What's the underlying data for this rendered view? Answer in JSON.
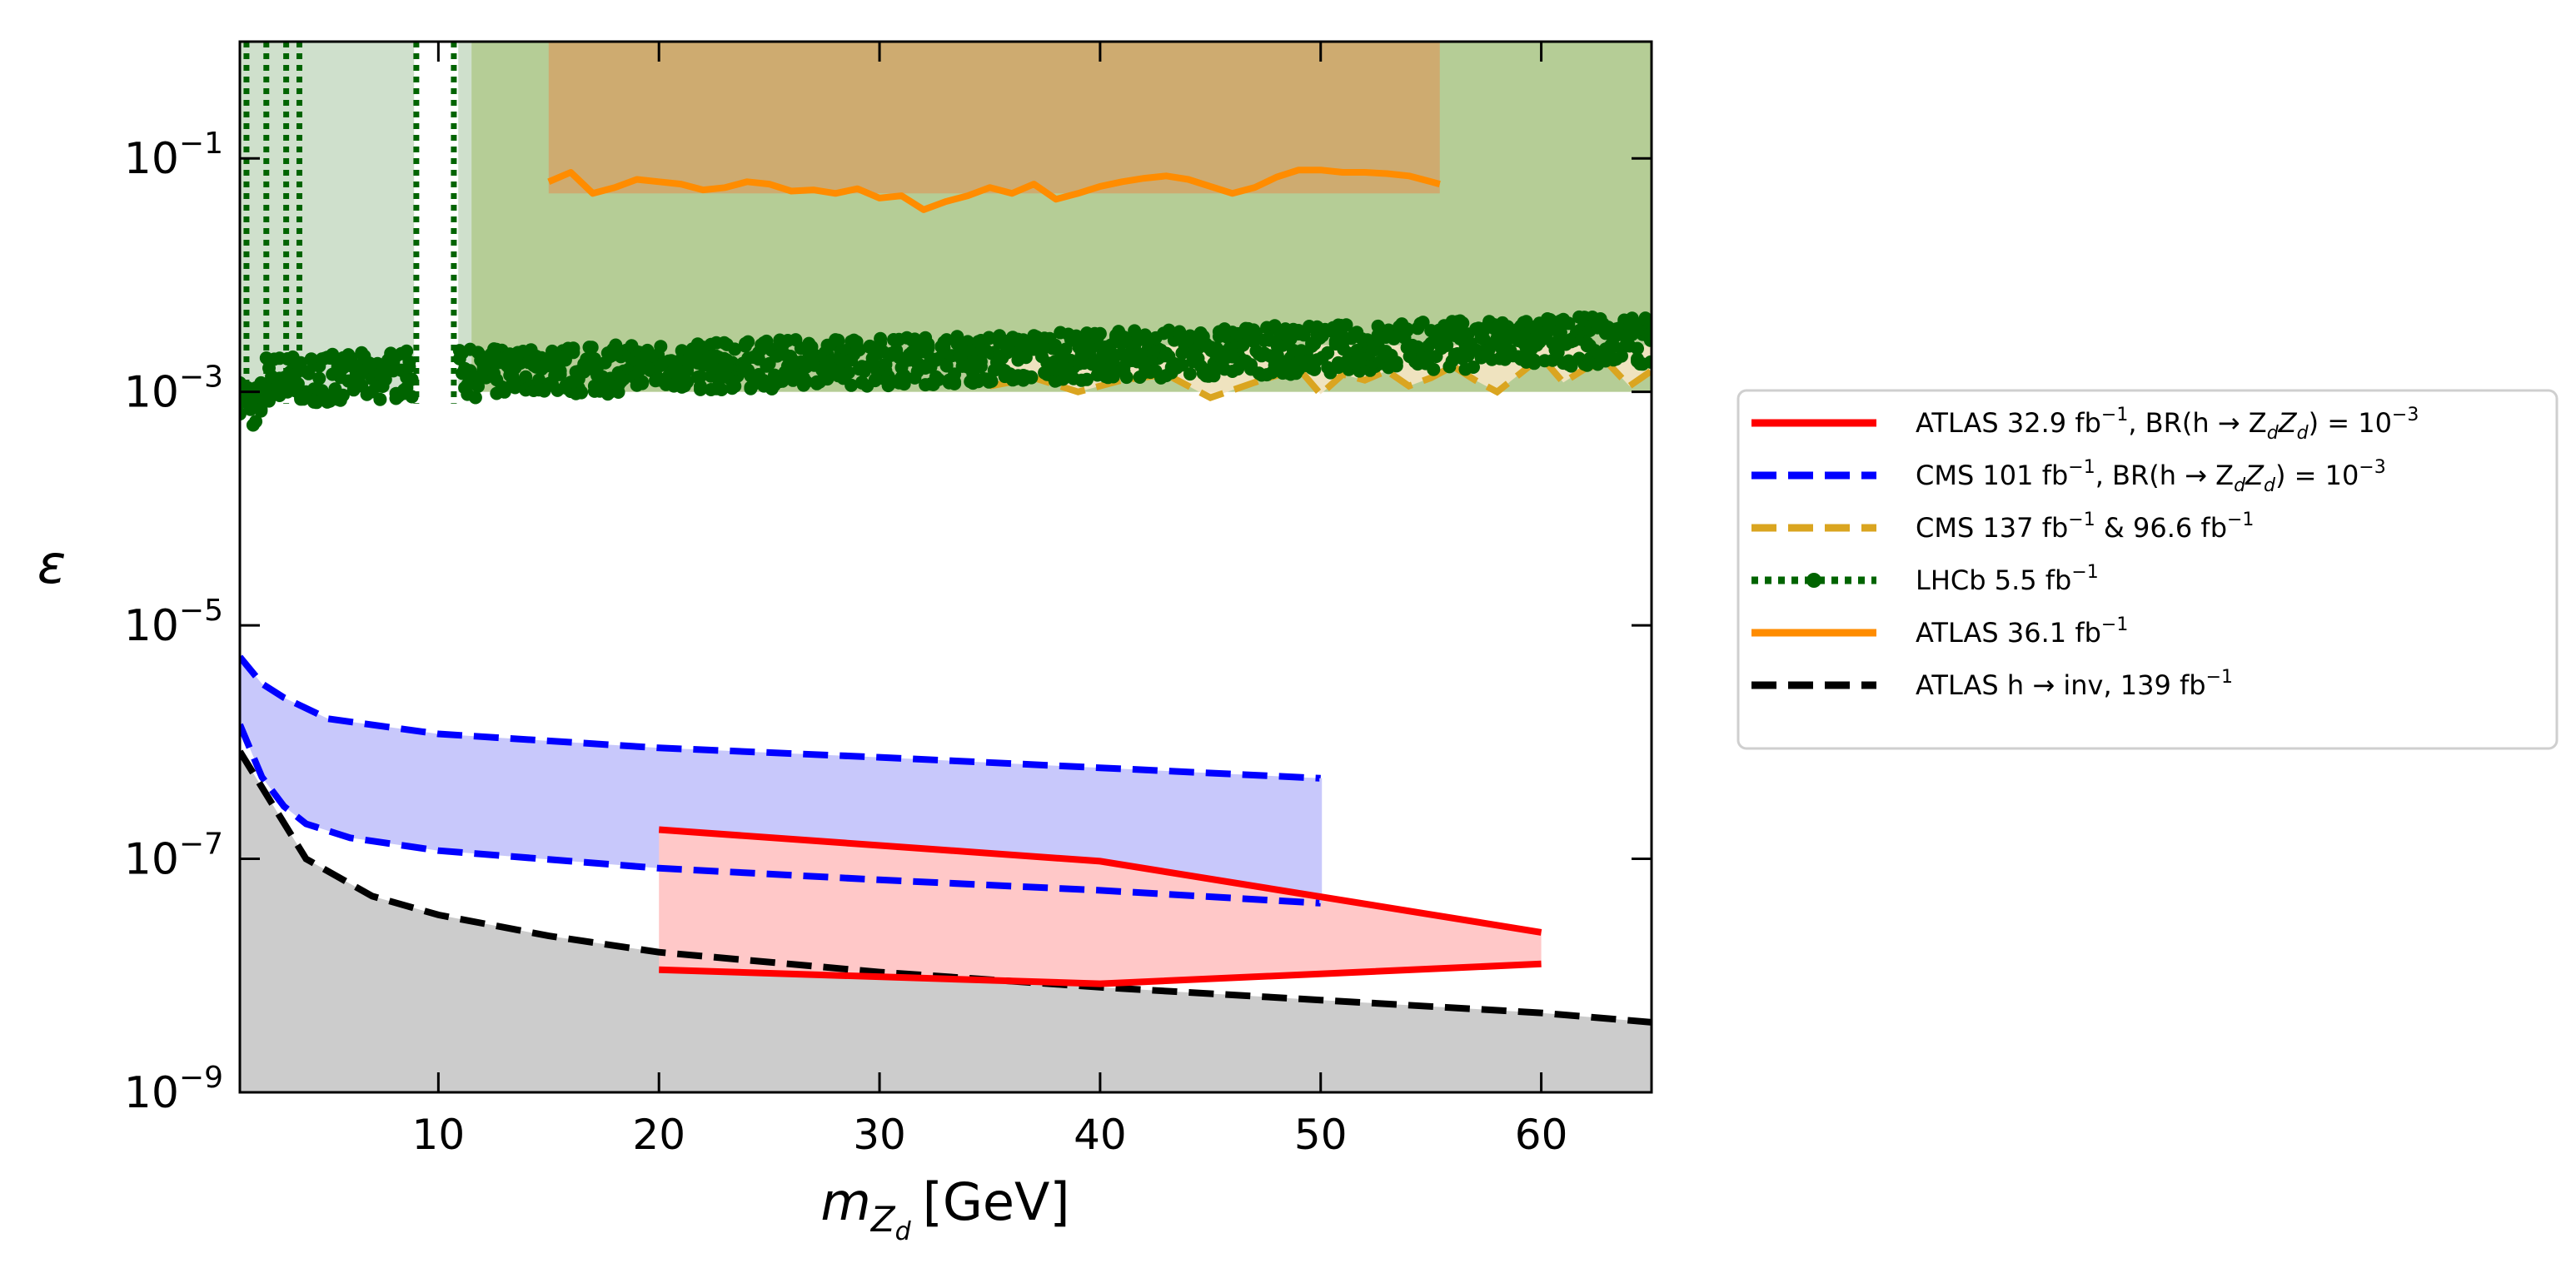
{
  "chart_data": {
    "type": "line",
    "xlabel": "m",
    "xlabel_sub": "Z",
    "xlabel_subsub": "d",
    "xlabel_unit": "[GeV]",
    "ylabel": "ε",
    "xlim": [
      1,
      65
    ],
    "ylim_log10": [
      -9,
      0
    ],
    "x_ticks": [
      10,
      20,
      30,
      40,
      50,
      60
    ],
    "y_ticks": [
      {
        "base": "10",
        "exp": "−1",
        "log10": -1
      },
      {
        "base": "10",
        "exp": "−3",
        "log10": -3
      },
      {
        "base": "10",
        "exp": "−5",
        "log10": -5
      },
      {
        "base": "10",
        "exp": "−7",
        "log10": -7
      },
      {
        "base": "10",
        "exp": "−9",
        "log10": -9
      }
    ],
    "legend_position": "right, outside plot",
    "legend": [
      {
        "id": "atlas329",
        "label": "ATLAS 32.9 fb",
        "sup": "−1",
        "tail": ", BR(h → Z",
        "tail2": "Z",
        "tail3": ") = 10",
        "tail_sup": "−3",
        "color": "#ff0000",
        "style": "solid"
      },
      {
        "id": "cms101",
        "label": "CMS 101 fb",
        "sup": "−1",
        "tail": ", BR(h → Z",
        "tail2": "Z",
        "tail3": ") = 10",
        "tail_sup": "−3",
        "color": "#0000ff",
        "style": "dashed"
      },
      {
        "id": "cms137",
        "label": "CMS 137 fb",
        "sup": "−1",
        "tail": " & 96.6 fb",
        "tail_sup": "−1",
        "color": "#daa520",
        "style": "dashed"
      },
      {
        "id": "lhcb",
        "label": "LHCb 5.5 fb",
        "sup": "−1",
        "color": "#006400",
        "style": "dotted-marker"
      },
      {
        "id": "atlas361",
        "label": "ATLAS 36.1 fb",
        "sup": "−1",
        "color": "#ff8c00",
        "style": "solid"
      },
      {
        "id": "hinv",
        "label": "ATLAS h → inv, 139 fb",
        "sup": "−1",
        "color": "#000000",
        "style": "dashed"
      }
    ],
    "series": [
      {
        "name": "ATLAS h→inv, 139 fb^-1",
        "color": "#000000",
        "x": [
          1,
          4,
          7,
          10,
          15,
          20,
          30,
          40,
          50,
          60,
          65
        ],
        "log10_eps": [
          -6.08,
          -7.0,
          -7.32,
          -7.48,
          -7.66,
          -7.8,
          -7.97,
          -8.1,
          -8.21,
          -8.32,
          -8.4
        ]
      },
      {
        "name": "CMS 101 fb^-1 upper",
        "color": "#0000ff",
        "x": [
          1,
          2,
          3,
          5,
          10,
          20,
          30,
          40,
          50
        ],
        "log10_eps": [
          -5.27,
          -5.5,
          -5.62,
          -5.8,
          -5.93,
          -6.05,
          -6.13,
          -6.22,
          -6.31
        ]
      },
      {
        "name": "CMS 101 fb^-1 lower",
        "color": "#0000ff",
        "x": [
          1,
          2,
          3,
          4,
          6,
          10,
          20,
          30,
          40,
          50
        ],
        "log10_eps": [
          -5.85,
          -6.3,
          -6.55,
          -6.7,
          -6.82,
          -6.93,
          -7.08,
          -7.18,
          -7.27,
          -7.38
        ]
      },
      {
        "name": "ATLAS 32.9 fb^-1 upper",
        "color": "#ff0000",
        "x": [
          20,
          40,
          60
        ],
        "log10_eps": [
          -6.75,
          -7.02,
          -7.63
        ]
      },
      {
        "name": "ATLAS 32.9 fb^-1 lower",
        "color": "#ff0000",
        "x": [
          20,
          40,
          60
        ],
        "log10_eps": [
          -7.95,
          -8.07,
          -7.9
        ]
      },
      {
        "name": "ATLAS 36.1 fb^-1",
        "color": "#ff8c00",
        "x": [
          15,
          16,
          17,
          18,
          19,
          20,
          21,
          22,
          23,
          24,
          25,
          26,
          27,
          28,
          29,
          30,
          31,
          32,
          33,
          34,
          35,
          36,
          37,
          38,
          39,
          40,
          41,
          42,
          43,
          44,
          45,
          46,
          47,
          48,
          49,
          50,
          51,
          52,
          53,
          54,
          55,
          55.4
        ],
        "log10_eps": [
          -1.2,
          -1.12,
          -1.3,
          -1.25,
          -1.18,
          -1.2,
          -1.22,
          -1.27,
          -1.25,
          -1.2,
          -1.22,
          -1.28,
          -1.27,
          -1.3,
          -1.26,
          -1.34,
          -1.32,
          -1.44,
          -1.37,
          -1.32,
          -1.25,
          -1.3,
          -1.22,
          -1.35,
          -1.3,
          -1.24,
          -1.2,
          -1.17,
          -1.15,
          -1.18,
          -1.24,
          -1.3,
          -1.25,
          -1.16,
          -1.1,
          -1.1,
          -1.12,
          -1.12,
          -1.13,
          -1.15,
          -1.2,
          -1.22
        ]
      },
      {
        "name": "CMS 137 fb^-1 & 96.6 fb^-1",
        "color": "#daa520",
        "x": [
          35,
          37,
          39,
          41,
          43,
          45,
          47,
          49,
          50,
          51,
          52,
          53,
          54,
          55,
          56,
          57,
          58,
          59,
          60,
          61,
          62,
          63,
          64,
          65
        ],
        "log10_eps": [
          -2.95,
          -2.88,
          -3.0,
          -2.9,
          -2.85,
          -3.05,
          -2.92,
          -2.8,
          -3.02,
          -2.85,
          -2.9,
          -2.82,
          -2.95,
          -2.88,
          -2.78,
          -2.9,
          -3.0,
          -2.85,
          -2.7,
          -2.92,
          -2.8,
          -2.75,
          -2.95,
          -2.82
        ]
      },
      {
        "name": "LHCb 5.5 fb^-1",
        "color": "#006400",
        "x_range": [
          1,
          65
        ],
        "gap": [
          8.9,
          10.9
        ],
        "band_log10": [
          -3.15,
          -2.5
        ]
      }
    ],
    "shaded_regions": [
      {
        "name": "ATLAS 36.1 excluded",
        "x": [
          15,
          55.4
        ],
        "log10_eps": [
          -1.3,
          0
        ],
        "color": "#d2a56a"
      },
      {
        "name": "LHCb/CMS excluded",
        "x": [
          11.5,
          65
        ],
        "log10_eps": [
          -3.0,
          0
        ],
        "color": "#b5cd96"
      },
      {
        "name": "low-mass excluded",
        "x": [
          1,
          8.9
        ],
        "log10_eps": [
          -3.0,
          0
        ],
        "color": "#cfe0cc"
      }
    ]
  }
}
